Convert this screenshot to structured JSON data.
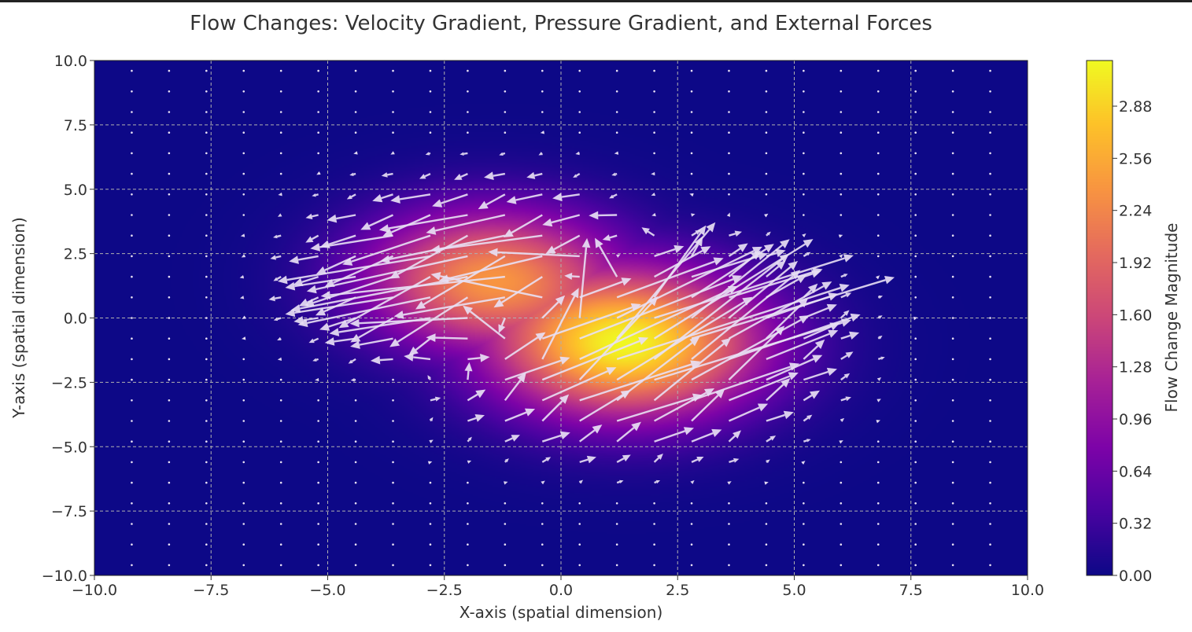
{
  "chart_data": {
    "type": "heatmap",
    "overlay": "quiver",
    "title": "Flow Changes: Velocity Gradient, Pressure Gradient, and External Forces",
    "xlabel": "X-axis (spatial dimension)",
    "ylabel": "Y-axis (spatial dimension)",
    "xlim": [
      -10,
      10
    ],
    "ylim": [
      -10,
      10
    ],
    "xticks": [
      "−10.0",
      "−7.5",
      "−5.0",
      "−2.5",
      "0.0",
      "2.5",
      "5.0",
      "7.5",
      "10.0"
    ],
    "xtick_values": [
      -10,
      -7.5,
      -5,
      -2.5,
      0,
      2.5,
      5,
      7.5,
      10
    ],
    "yticks": [
      "−10.0",
      "−7.5",
      "−5.0",
      "−2.5",
      "0.0",
      "2.5",
      "5.0",
      "7.5",
      "10.0"
    ],
    "ytick_values": [
      -10,
      -7.5,
      -5,
      -2.5,
      0,
      2.5,
      5,
      7.5,
      10
    ],
    "grid": true,
    "colormap": "plasma",
    "colorbar": {
      "label": "Flow Change Magnitude",
      "range": [
        0,
        3.16
      ],
      "ticks": [
        "0.00",
        "0.32",
        "0.64",
        "0.96",
        "1.28",
        "1.60",
        "1.92",
        "2.24",
        "2.56",
        "2.88"
      ],
      "tick_values": [
        0,
        0.32,
        0.64,
        0.96,
        1.28,
        1.6,
        1.92,
        2.24,
        2.56,
        2.88
      ]
    },
    "field_components": [
      {
        "center": [
          -1.5,
          1.5
        ],
        "amplitude": 2.3,
        "sigma": 1.9,
        "flow_direction": [
          -1.0,
          -0.55
        ]
      },
      {
        "center": [
          1.4,
          -1.0
        ],
        "amplitude": 3.1,
        "sigma": 2.0,
        "flow_direction": [
          1.0,
          0.95
        ]
      }
    ],
    "quiver_grid": {
      "x_start": -9.2,
      "x_step": 0.8,
      "nx": 24,
      "y_start": -9.6,
      "y_step": 0.8,
      "ny": 25,
      "color": "#e8e0f4"
    }
  }
}
